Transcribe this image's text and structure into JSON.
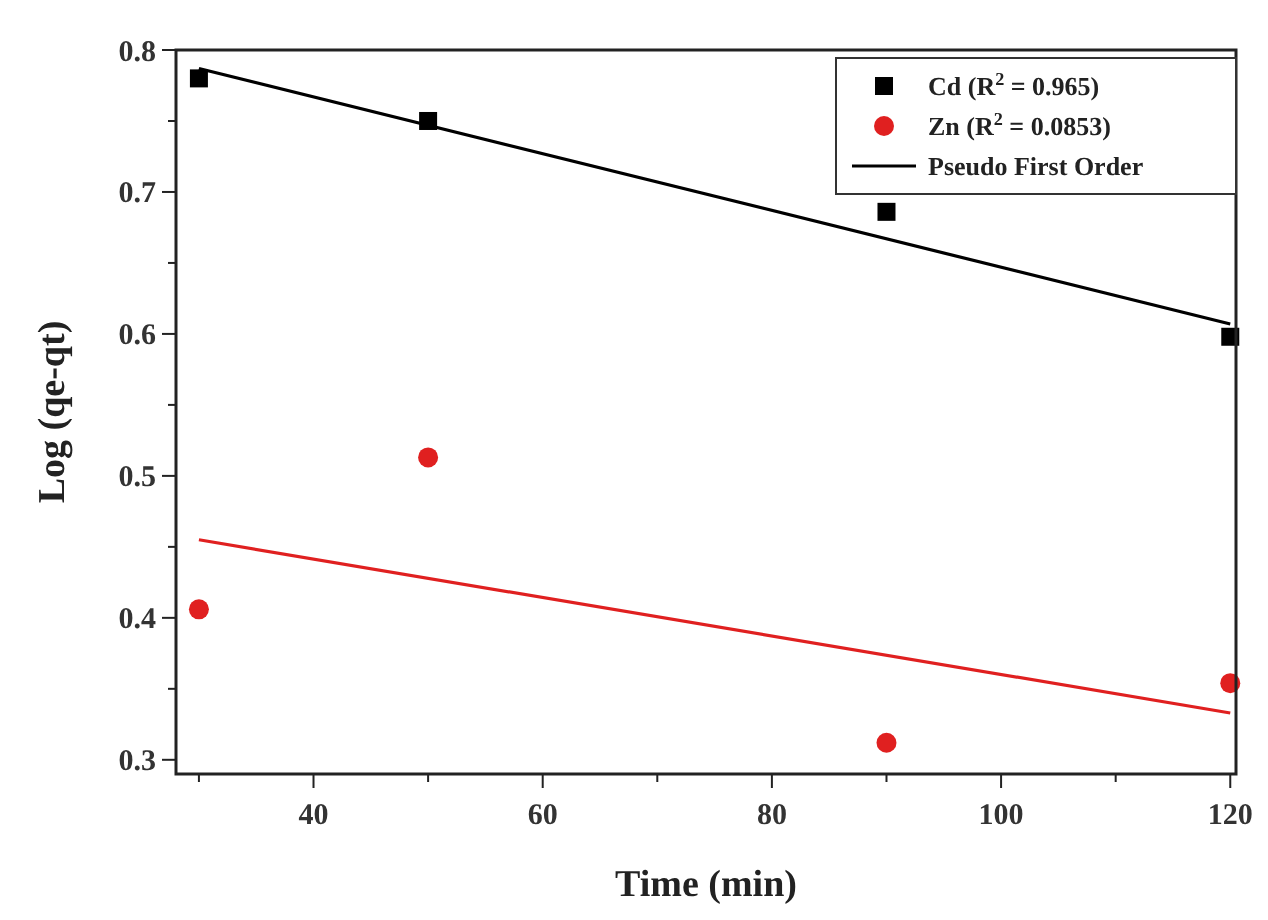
{
  "chart_data": {
    "type": "scatter",
    "xlabel": "Time (min)",
    "ylabel": "Log (qe-qt)",
    "xlim": [
      28,
      120.5
    ],
    "ylim": [
      0.29,
      0.8
    ],
    "xticks": [
      {
        "value": 30,
        "label": null
      },
      40,
      {
        "value": 50,
        "label": null
      },
      60,
      {
        "value": 70,
        "label": null
      },
      80,
      {
        "value": 90,
        "label": null
      },
      100,
      {
        "value": 110,
        "label": null
      },
      120
    ],
    "yticks": [
      0.3,
      {
        "value": 0.35,
        "label": null
      },
      0.4,
      {
        "value": 0.45,
        "label": null
      },
      0.5,
      {
        "value": 0.55,
        "label": null
      },
      0.6,
      {
        "value": 0.65,
        "label": null
      },
      0.7,
      {
        "value": 0.75,
        "label": null
      },
      0.8
    ],
    "legend": "top right",
    "grid": false,
    "series": [
      {
        "name": "Cd (R$^{2}$ = 0.965)",
        "color": "#000000",
        "marker": "square",
        "x": [
          30,
          50,
          90,
          120
        ],
        "values": [
          0.78,
          0.75,
          0.686,
          0.598
        ]
      },
      {
        "name": "Zn (R$^{2}$ = 0.0853)",
        "color": "#e02020",
        "marker": "circle",
        "x": [
          30,
          50,
          90,
          120
        ],
        "values": [
          0.406,
          0.513,
          0.312,
          0.354
        ]
      },
      {
        "name": "Pseudo First Order",
        "type": "line",
        "color": "#000000",
        "x": [
          30,
          120
        ],
        "values": [
          0.787,
          0.607
        ]
      },
      {
        "type": "line",
        "color": "#e02020",
        "x": [
          30,
          120
        ],
        "values": [
          0.455,
          0.333
        ]
      }
    ]
  }
}
